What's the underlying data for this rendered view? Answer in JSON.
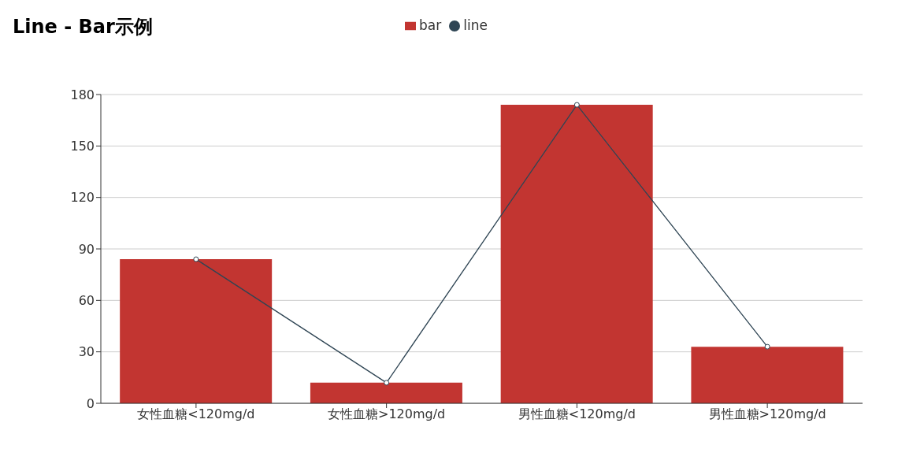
{
  "chart_data": {
    "type": "bar",
    "title": "Line - Bar示例",
    "categories": [
      "女性血糖<120mg/d",
      "女性血糖>120mg/d",
      "男性血糖<120mg/d",
      "男性血糖>120mg/d"
    ],
    "series": [
      {
        "name": "bar",
        "color": "#c23531",
        "values": [
          84,
          12,
          174,
          33
        ]
      },
      {
        "name": "line",
        "type": "line",
        "color": "#2f4554",
        "values": [
          84,
          12,
          174,
          33
        ],
        "marker": "circle"
      }
    ],
    "ylim": [
      0,
      180
    ],
    "yticks": [
      0,
      30,
      60,
      90,
      120,
      150,
      180
    ],
    "grid": "y",
    "legend": "top"
  }
}
